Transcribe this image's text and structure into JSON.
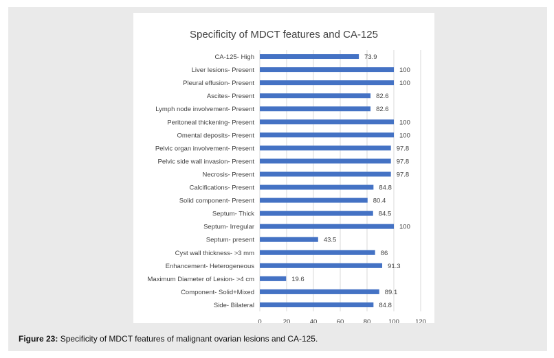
{
  "caption": {
    "label": "Figure 23:",
    "text": " Specificity of MDCT features of malignant ovarian lesions and CA-125."
  },
  "colors": {
    "bar": "#4472c4",
    "panel_bg": "#ffffff",
    "frame_bg": "#eaeaea",
    "gridline": "#d9d9d9",
    "text": "#404040",
    "title": "#404040"
  },
  "chart_data": {
    "type": "bar",
    "orientation": "horizontal",
    "title": "Specificity of MDCT features and CA-125",
    "xlabel": "",
    "ylabel": "",
    "xlim": [
      0,
      120
    ],
    "xticks": [
      0,
      20,
      40,
      60,
      80,
      100,
      120
    ],
    "grid": true,
    "legend": "none",
    "categories": [
      "CA-125- High",
      "Liver lesions- Present",
      "Pleural effusion- Present",
      "Ascites- Present",
      "Lymph node involvement- Present",
      "Peritoneal thickening- Present",
      "Omental deposits- Present",
      "Pelvic organ involvement- Present",
      "Pelvic side wall invasion- Present",
      "Necrosis- Present",
      "Calcifications- Present",
      "Solid component- Present",
      "Septum- Thick",
      "Septum- Irregular",
      "Septum- present",
      "Cyst wall thickness- >3 mm",
      "Enhancement- Heterogeneous",
      "Maximum Diameter of Lesion- >4 cm",
      "Component- Solid+Mixed",
      "Side- Bilateral"
    ],
    "values": [
      73.9,
      100,
      100,
      82.6,
      82.6,
      100,
      100,
      97.8,
      97.8,
      97.8,
      84.8,
      80.4,
      84.5,
      100,
      43.5,
      86,
      91.3,
      19.6,
      89.1,
      84.8
    ]
  }
}
